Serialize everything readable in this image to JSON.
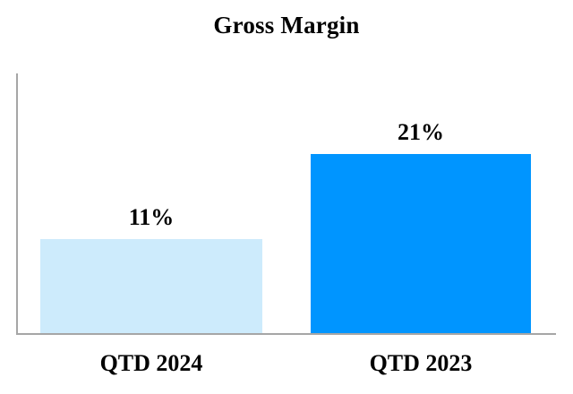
{
  "chart_data": {
    "type": "bar",
    "title": "Gross Margin",
    "categories": [
      "QTD 2024",
      "QTD 2023"
    ],
    "values": [
      11,
      21
    ],
    "value_labels": [
      "11%",
      "21%"
    ],
    "bar_colors": [
      "#CDEBFC",
      "#0095FF"
    ],
    "axis_color": "#A6A6A6",
    "background": "#FFFFFF",
    "text_color": "#000000",
    "xlabel": "",
    "ylabel": "",
    "ylim": [
      0,
      30.5
    ],
    "grid": false,
    "legend": false
  }
}
